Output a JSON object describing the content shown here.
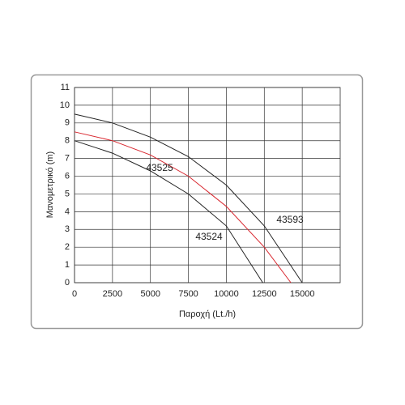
{
  "chart_data": {
    "type": "line",
    "xlabel": "Παροχή (Lt./h)",
    "ylabel": "Μανομετρικό (m)",
    "xlim": [
      0,
      17500
    ],
    "ylim": [
      0,
      11
    ],
    "xticks": [
      0,
      2500,
      5000,
      7500,
      10000,
      12500,
      15000
    ],
    "yticks": [
      0,
      1,
      2,
      3,
      4,
      5,
      6,
      7,
      8,
      9,
      10,
      11
    ],
    "grid": true,
    "series": [
      {
        "name": "43593",
        "color": "#222222",
        "x": [
          0,
          2500,
          5000,
          7500,
          10000,
          12500,
          15000
        ],
        "values": [
          9.5,
          9.0,
          8.2,
          7.1,
          5.5,
          3.2,
          0
        ]
      },
      {
        "name": "43525",
        "color": "#d8262e",
        "x": [
          0,
          2500,
          5000,
          7500,
          10000,
          12500,
          14250
        ],
        "values": [
          8.5,
          8.0,
          7.2,
          6.0,
          4.3,
          2.0,
          0
        ]
      },
      {
        "name": "43524",
        "color": "#222222",
        "x": [
          0,
          2500,
          5000,
          7500,
          10000,
          12400
        ],
        "values": [
          8.0,
          7.3,
          6.3,
          5.0,
          3.2,
          0
        ]
      }
    ]
  }
}
